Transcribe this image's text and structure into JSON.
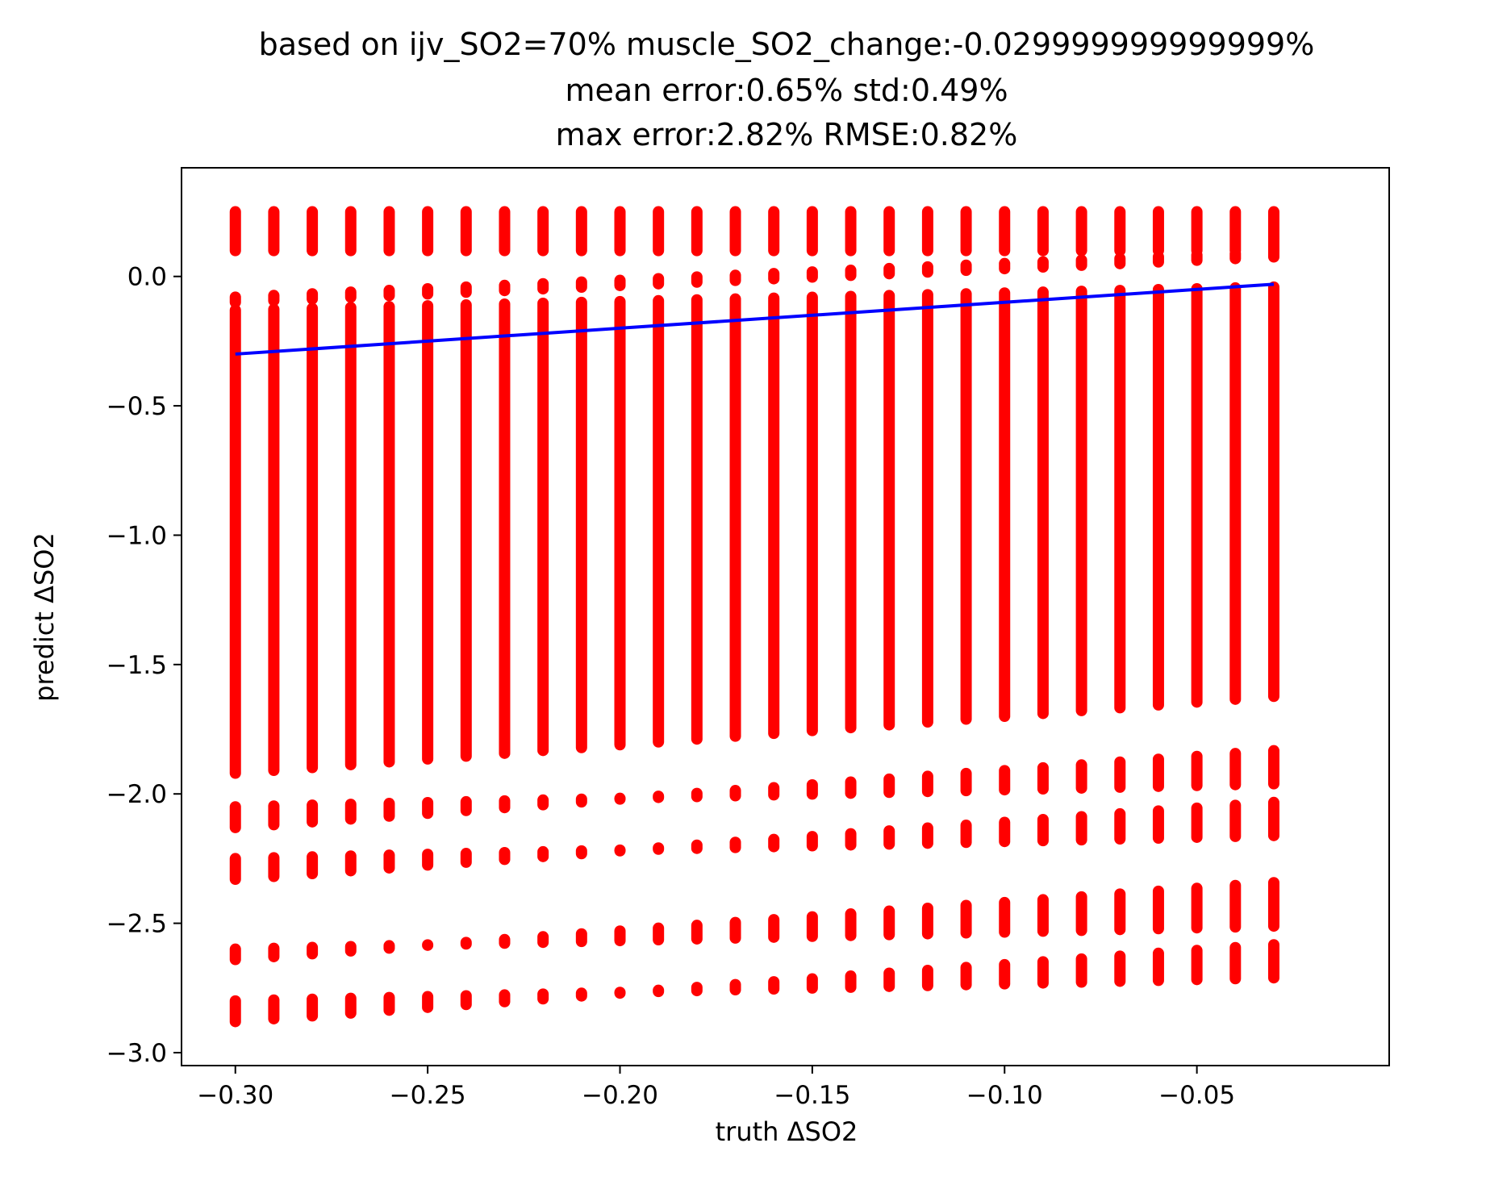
{
  "chart_data": {
    "type": "scatter",
    "title_lines": [
      "based on ijv_SO2=70% muscle_SO2_change:-0.029999999999999%",
      "mean error:0.65% std:0.49%",
      "max error:2.82% RMSE:0.82%"
    ],
    "xlabel": "truth ΔSO2",
    "ylabel": "predict ΔSO2",
    "xlim": [
      -0.314,
      0.0
    ],
    "ylim": [
      -3.05,
      0.42
    ],
    "xticks": [
      {
        "value": -0.3,
        "label": "−0.30"
      },
      {
        "value": -0.25,
        "label": "−0.25"
      },
      {
        "value": -0.2,
        "label": "−0.20"
      },
      {
        "value": -0.15,
        "label": "−0.15"
      },
      {
        "value": -0.1,
        "label": "−0.10"
      },
      {
        "value": -0.05,
        "label": "−0.05"
      }
    ],
    "yticks": [
      {
        "value": 0.0,
        "label": "0.0"
      },
      {
        "value": -0.5,
        "label": "−0.5"
      },
      {
        "value": -1.0,
        "label": "−1.0"
      },
      {
        "value": -1.5,
        "label": "−1.5"
      },
      {
        "value": -2.0,
        "label": "−2.0"
      },
      {
        "value": -2.5,
        "label": "−2.5"
      },
      {
        "value": -3.0,
        "label": "−3.0"
      }
    ],
    "grid": false,
    "series": [
      {
        "kind": "scatter",
        "color": "#ff0000",
        "x": [
          -0.3,
          -0.29,
          -0.28,
          -0.27,
          -0.26,
          -0.25,
          -0.24,
          -0.23,
          -0.22,
          -0.21,
          -0.2,
          -0.19,
          -0.18,
          -0.17,
          -0.16,
          -0.15,
          -0.14,
          -0.13,
          -0.12,
          -0.11,
          -0.1,
          -0.09,
          -0.08,
          -0.07,
          -0.06,
          -0.05,
          -0.04,
          -0.03
        ],
        "y_segments_per_x": [
          [
            0.25,
            0.1
          ],
          [
            -0.08,
            -0.1
          ],
          [
            -0.13,
            -1.92
          ],
          [
            -2.05,
            -2.13
          ],
          [
            -2.25,
            -2.33
          ],
          [
            -2.6,
            -2.64
          ],
          [
            -2.8,
            -2.88
          ]
        ],
        "y_segment_shift_per_column": 0.011
      },
      {
        "kind": "line",
        "color": "#0000ff",
        "x": [
          -0.3,
          -0.03
        ],
        "y": [
          -0.3,
          -0.03
        ]
      }
    ]
  }
}
